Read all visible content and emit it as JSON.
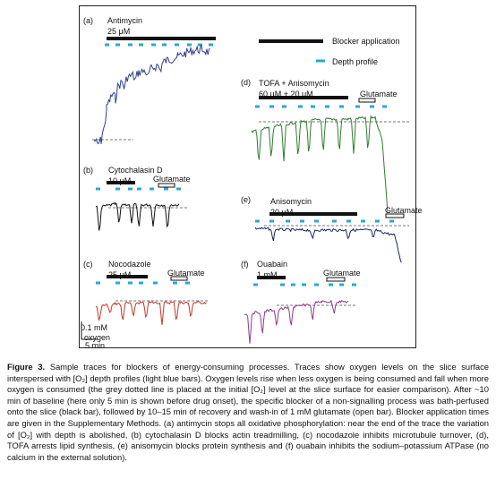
{
  "colors": {
    "blocker_bar": "#111111",
    "depth_profile": "#2aa7d9",
    "dotted": "#777777",
    "a": "#2f3e8f",
    "b": "#111111",
    "c": "#c0392b",
    "d": "#2e7d32",
    "e": "#1c2466",
    "f": "#8e3b8e"
  },
  "legend": {
    "blocker": "Blocker application",
    "depth": "Depth profile"
  },
  "panels": {
    "a": {
      "letter": "(a)",
      "title": "Antimycin",
      "conc": "25 μM"
    },
    "b": {
      "letter": "(b)",
      "title": "Cytochalasin D",
      "conc": "10 μM",
      "glutamate": "Glutamate"
    },
    "c": {
      "letter": "(c)",
      "title": "Nocodazole",
      "conc": "25 μM",
      "glutamate": "Glutamate"
    },
    "d": {
      "letter": "(d)",
      "title": "TOFA + Anisomycin",
      "conc": "60 μM + 20 μM",
      "glutamate": "Glutamate"
    },
    "e": {
      "letter": "(e)",
      "title": "Anisomycin",
      "conc": "20 μM",
      "glutamate": "Glutamate"
    },
    "f": {
      "letter": "(f)",
      "title": "Ouabain",
      "conc": "1 mM",
      "glutamate": "Glutamate"
    }
  },
  "scalebar": {
    "vertical": "0.1 mM",
    "vertical_unit": "oxygen",
    "horizontal": "5 min"
  },
  "caption": {
    "title": "Figure 3.",
    "text": "Sample traces for blockers of energy-consuming processes. Traces show oxygen levels on the slice surface interspersed with [O₂] depth profiles (light blue bars). Oxygen levels rise when less oxygen is being consumed and fall when more oxygen is consumed (the grey dotted line is placed at the initial [O₂] level at the slice surface for easier comparison). After ~10 min of baseline (here only 5 min is shown before drug onset), the specific blocker of a non-signalling process was bath-perfused onto the slice (black bar), followed by 10–15 min of recovery and wash-in of 1 mM glutamate (open bar). Blocker application times are given in the Supplementary Methods. (a) antimycin stops all oxidative phosphorylation: near the end of the trace the variation of [O₂] with depth is abolished, (b) cytochalasin D blocks actin treadmilling, (c) nocodazole inhibits microtubule turnover, (d), TOFA arrests lipid synthesis, (e) anisomycin blocks protein synthesis and (f) ouabain inhibits the sodium–potassium ATPase (no calcium in the external solution)."
  }
}
